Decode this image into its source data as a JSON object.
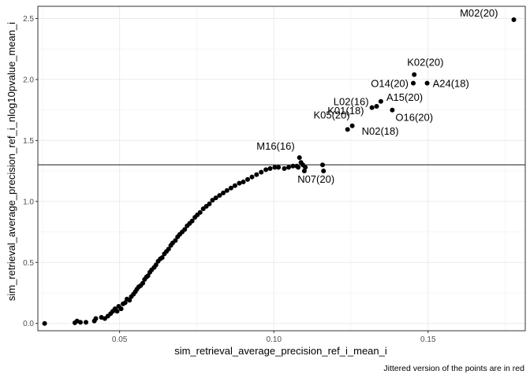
{
  "chart_data": {
    "type": "scatter",
    "title": "",
    "xlabel": "sim_retrieval_average_precision_ref_i_mean_i",
    "ylabel": "sim_retrieval_average_precision_ref_i_nlog10pvalue_mean_i",
    "caption": "Jittered version of the points are in red",
    "xlim": [
      0.0235,
      0.1815
    ],
    "ylim": [
      -0.06,
      2.6
    ],
    "x_ticks": [
      0.05,
      0.1,
      0.15
    ],
    "x_tick_labels": [
      "0.05",
      "0.10",
      "0.15"
    ],
    "y_ticks": [
      0.0,
      0.5,
      1.0,
      1.5,
      2.0,
      2.5
    ],
    "y_tick_labels": [
      "0.0",
      "0.5",
      "1.0",
      "1.5",
      "2.0",
      "2.5"
    ],
    "grid": true,
    "hline": 1.3,
    "labeled_points": [
      {
        "label": "M02(20)",
        "x": 0.1778,
        "y": 2.49
      },
      {
        "label": "K02(20)",
        "x": 0.1455,
        "y": 2.04
      },
      {
        "label": "O14(20)",
        "x": 0.1452,
        "y": 1.97
      },
      {
        "label": "A24(18)",
        "x": 0.1497,
        "y": 1.97
      },
      {
        "label": "L02(16)",
        "x": 0.1318,
        "y": 1.77
      },
      {
        "label": "A15(20)",
        "x": 0.1347,
        "y": 1.82
      },
      {
        "label": "K01(18)",
        "x": 0.1333,
        "y": 1.78
      },
      {
        "label": "O16(20)",
        "x": 0.1384,
        "y": 1.75
      },
      {
        "label": "N02(18)",
        "x": 0.1254,
        "y": 1.62
      },
      {
        "label": "K05(20)",
        "x": 0.1239,
        "y": 1.59
      },
      {
        "label": "M16(16)",
        "x": 0.1083,
        "y": 1.36
      },
      {
        "label": "N07(20)",
        "x": 0.1161,
        "y": 1.25
      }
    ],
    "points": [
      [
        0.0257,
        0.0
      ],
      [
        0.0355,
        0.005
      ],
      [
        0.0362,
        0.02
      ],
      [
        0.0373,
        0.01
      ],
      [
        0.0391,
        0.01
      ],
      [
        0.0418,
        0.02
      ],
      [
        0.0423,
        0.04
      ],
      [
        0.0441,
        0.05
      ],
      [
        0.0452,
        0.04
      ],
      [
        0.0462,
        0.06
      ],
      [
        0.0471,
        0.08
      ],
      [
        0.0478,
        0.1
      ],
      [
        0.0485,
        0.12
      ],
      [
        0.0492,
        0.1
      ],
      [
        0.0497,
        0.14
      ],
      [
        0.0505,
        0.12
      ],
      [
        0.0511,
        0.16
      ],
      [
        0.0518,
        0.17
      ],
      [
        0.0524,
        0.2
      ],
      [
        0.0532,
        0.19
      ],
      [
        0.0538,
        0.22
      ],
      [
        0.0545,
        0.24
      ],
      [
        0.0551,
        0.26
      ],
      [
        0.0556,
        0.28
      ],
      [
        0.0562,
        0.3
      ],
      [
        0.0568,
        0.31
      ],
      [
        0.0575,
        0.33
      ],
      [
        0.0581,
        0.36
      ],
      [
        0.0587,
        0.38
      ],
      [
        0.0592,
        0.39
      ],
      [
        0.0598,
        0.42
      ],
      [
        0.0604,
        0.44
      ],
      [
        0.0612,
        0.46
      ],
      [
        0.0618,
        0.48
      ],
      [
        0.0625,
        0.51
      ],
      [
        0.0632,
        0.53
      ],
      [
        0.0638,
        0.54
      ],
      [
        0.0645,
        0.57
      ],
      [
        0.0652,
        0.59
      ],
      [
        0.0659,
        0.61
      ],
      [
        0.0666,
        0.64
      ],
      [
        0.0672,
        0.66
      ],
      [
        0.0681,
        0.68
      ],
      [
        0.0688,
        0.71
      ],
      [
        0.0695,
        0.73
      ],
      [
        0.0703,
        0.75
      ],
      [
        0.0711,
        0.77
      ],
      [
        0.0719,
        0.8
      ],
      [
        0.0727,
        0.82
      ],
      [
        0.0735,
        0.84
      ],
      [
        0.0744,
        0.87
      ],
      [
        0.0752,
        0.89
      ],
      [
        0.0761,
        0.91
      ],
      [
        0.0771,
        0.94
      ],
      [
        0.0781,
        0.96
      ],
      [
        0.0791,
        0.98
      ],
      [
        0.0801,
        1.01
      ],
      [
        0.0812,
        1.03
      ],
      [
        0.0824,
        1.05
      ],
      [
        0.0836,
        1.07
      ],
      [
        0.0848,
        1.09
      ],
      [
        0.0861,
        1.11
      ],
      [
        0.0874,
        1.13
      ],
      [
        0.0888,
        1.15
      ],
      [
        0.0901,
        1.16
      ],
      [
        0.0915,
        1.18
      ],
      [
        0.0929,
        1.2
      ],
      [
        0.0944,
        1.22
      ],
      [
        0.0959,
        1.24
      ],
      [
        0.0974,
        1.26
      ],
      [
        0.0988,
        1.27
      ],
      [
        0.1003,
        1.28
      ],
      [
        0.1015,
        1.28
      ],
      [
        0.1034,
        1.27
      ],
      [
        0.1048,
        1.28
      ],
      [
        0.1062,
        1.29
      ],
      [
        0.1074,
        1.29
      ],
      [
        0.1079,
        1.28
      ],
      [
        0.1088,
        1.32
      ],
      [
        0.1094,
        1.3
      ],
      [
        0.1099,
        1.25
      ],
      [
        0.1102,
        1.28
      ],
      [
        0.1158,
        1.3
      ]
    ]
  }
}
